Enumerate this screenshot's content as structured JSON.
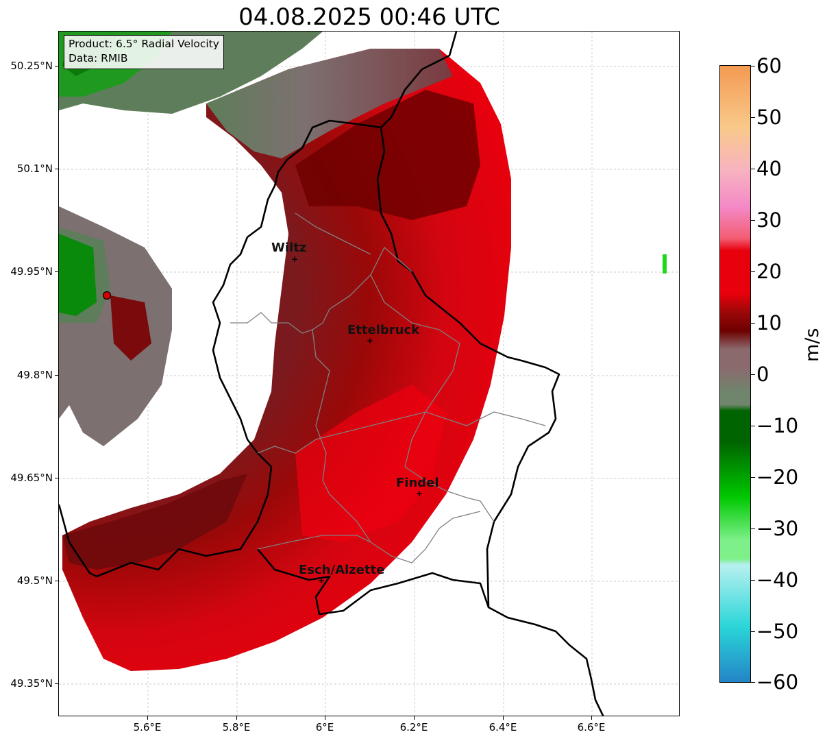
{
  "title": "04.08.2025 00:46 UTC",
  "info_box": {
    "product": "Product: 6.5° Radial Velocity",
    "source": "Data: RMIB"
  },
  "latitude_labels": [
    "50.25°N",
    "50.1°N",
    "49.95°N",
    "49.8°N",
    "49.65°N",
    "49.5°N",
    "49.35°N"
  ],
  "longitude_labels": [
    "5.6°E",
    "5.8°E",
    "6°E",
    "6.2°E",
    "6.4°E",
    "6.6°E"
  ],
  "cities": [
    {
      "name": "Wiltz",
      "label": "Wiltz"
    },
    {
      "name": "Ettelbruck",
      "label": "Ettelbruck"
    },
    {
      "name": "Findel",
      "label": "Findel"
    },
    {
      "name": "Esch/Alzette",
      "label": "Esch/Alzette"
    }
  ],
  "colorbar": {
    "unit": "m/s",
    "min": -60,
    "max": 60,
    "tick_labels": [
      "60",
      "50",
      "40",
      "30",
      "20",
      "10",
      "0",
      "−10",
      "−20",
      "−30",
      "−40",
      "−50",
      "−60"
    ],
    "colors": {
      "orange": "#f39a52",
      "peach": "#f9c98a",
      "light_pink": "#f7b3c0",
      "pink": "#f488c6",
      "rose": "#f35d72",
      "red": "#e8000d",
      "dark_red": "#9b0808",
      "maroon": "#6e0000",
      "grey_brown": "#8b6a6e",
      "grey_green": "#6f856c",
      "dark_green": "#006400",
      "green": "#00c800",
      "light_green": "#7ef08a",
      "light_cyan": "#b8f0f0",
      "cyan": "#2ad6d8",
      "blue": "#2385c7"
    }
  },
  "map_colors": {
    "border": "#000000",
    "canton_lines": "#808080",
    "gridlines": "#b8b8b8"
  }
}
